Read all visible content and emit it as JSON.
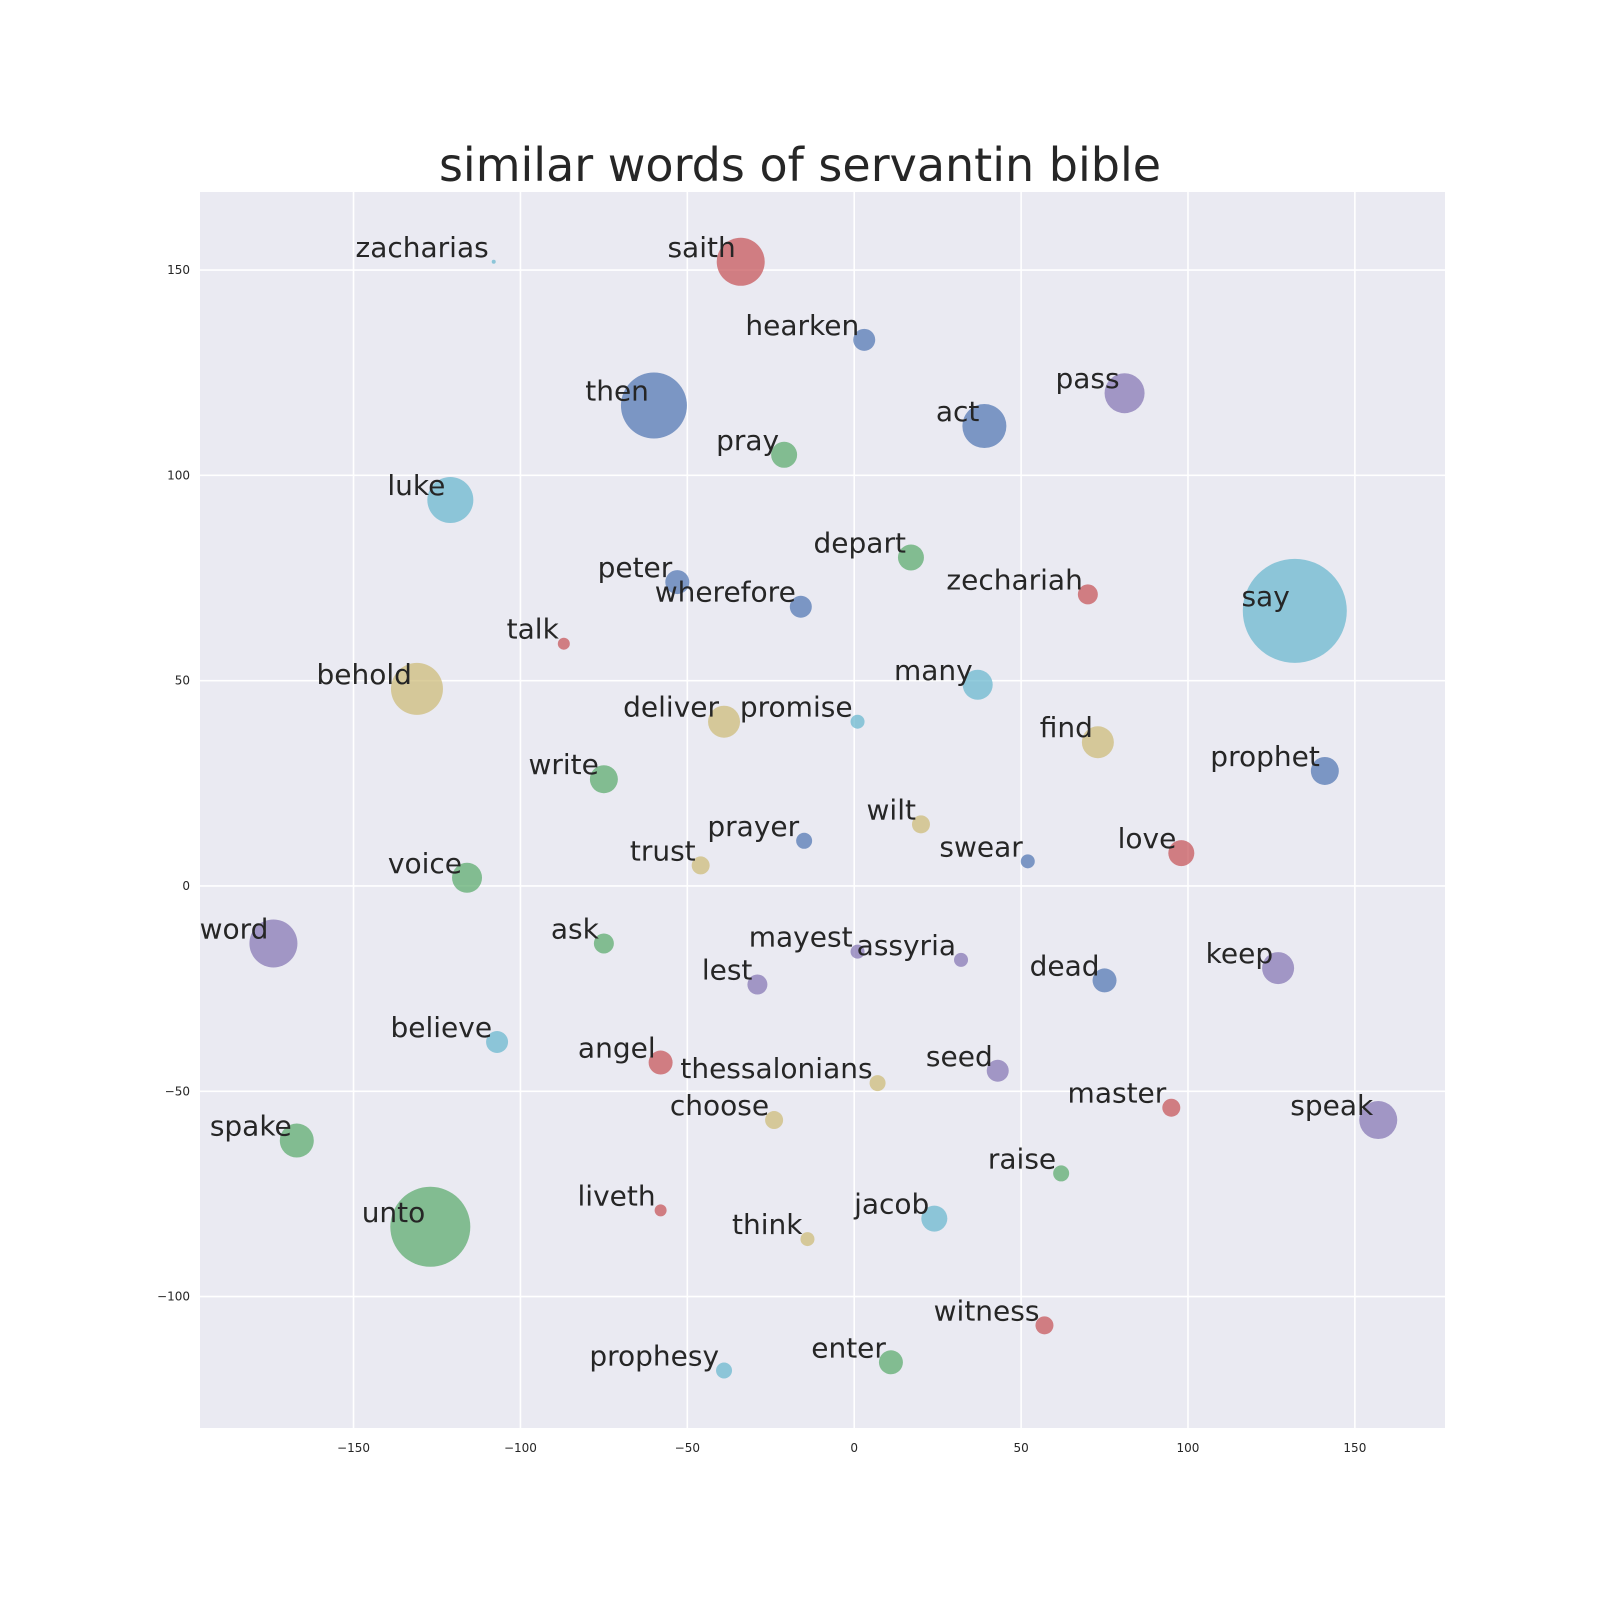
{
  "chart_data": {
    "type": "scatter",
    "title": "similar words of servantin bible",
    "xlabel": "",
    "ylabel": "",
    "xlim": [
      -196,
      177
    ],
    "ylim": [
      -132,
      169
    ],
    "grid": true,
    "x_ticks": [
      -150,
      -100,
      -50,
      0,
      50,
      100,
      150
    ],
    "x_tick_labels": [
      "−150",
      "−100",
      "−50",
      "0",
      "50",
      "100",
      "150"
    ],
    "y_ticks": [
      150,
      100,
      50,
      0,
      -50,
      -100
    ],
    "y_tick_labels": [
      "150",
      "100",
      "50",
      "0",
      "−50",
      "−100"
    ],
    "colors": {
      "blue": "#4c72b0",
      "green": "#55a868",
      "red": "#c44e52",
      "purple": "#8172b2",
      "yellow": "#ccb974",
      "cyan": "#64b5cd"
    },
    "points": [
      {
        "word": "zacharias",
        "x": -108,
        "y": 152,
        "size": 2,
        "color": "cyan"
      },
      {
        "word": "saith",
        "x": -34,
        "y": 152,
        "size": 24,
        "color": "red"
      },
      {
        "word": "hearken",
        "x": 3,
        "y": 133,
        "size": 11,
        "color": "blue"
      },
      {
        "word": "then",
        "x": -60,
        "y": 117,
        "size": 33,
        "color": "blue"
      },
      {
        "word": "pass",
        "x": 81,
        "y": 120,
        "size": 20,
        "color": "purple"
      },
      {
        "word": "act",
        "x": 39,
        "y": 112,
        "size": 22,
        "color": "blue"
      },
      {
        "word": "pray",
        "x": -21,
        "y": 105,
        "size": 13,
        "color": "green"
      },
      {
        "word": "luke",
        "x": -121,
        "y": 94,
        "size": 23,
        "color": "cyan"
      },
      {
        "word": "depart",
        "x": 17,
        "y": 80,
        "size": 13,
        "color": "green"
      },
      {
        "word": "peter",
        "x": -53,
        "y": 74,
        "size": 12,
        "color": "blue"
      },
      {
        "word": "wherefore",
        "x": -16,
        "y": 68,
        "size": 11,
        "color": "blue"
      },
      {
        "word": "zechariah",
        "x": 70,
        "y": 71,
        "size": 10,
        "color": "red"
      },
      {
        "word": "say",
        "x": 132,
        "y": 67,
        "size": 52,
        "color": "cyan"
      },
      {
        "word": "talk",
        "x": -87,
        "y": 59,
        "size": 6,
        "color": "red"
      },
      {
        "word": "behold",
        "x": -131,
        "y": 48,
        "size": 26,
        "color": "yellow"
      },
      {
        "word": "many",
        "x": 37,
        "y": 49,
        "size": 15,
        "color": "cyan"
      },
      {
        "word": "deliver",
        "x": -39,
        "y": 40,
        "size": 16,
        "color": "yellow"
      },
      {
        "word": "promise",
        "x": 1,
        "y": 40,
        "size": 7,
        "color": "cyan"
      },
      {
        "word": "find",
        "x": 73,
        "y": 35,
        "size": 16,
        "color": "yellow"
      },
      {
        "word": "prophet",
        "x": 141,
        "y": 28,
        "size": 14,
        "color": "blue"
      },
      {
        "word": "write",
        "x": -75,
        "y": 26,
        "size": 14,
        "color": "green"
      },
      {
        "word": "wilt",
        "x": 20,
        "y": 15,
        "size": 9,
        "color": "yellow"
      },
      {
        "word": "prayer",
        "x": -15,
        "y": 11,
        "size": 8,
        "color": "blue"
      },
      {
        "word": "swear",
        "x": 52,
        "y": 6,
        "size": 7,
        "color": "blue"
      },
      {
        "word": "love",
        "x": 98,
        "y": 8,
        "size": 13,
        "color": "red"
      },
      {
        "word": "trust",
        "x": -46,
        "y": 5,
        "size": 9,
        "color": "yellow"
      },
      {
        "word": "voice",
        "x": -116,
        "y": 2,
        "size": 15,
        "color": "green"
      },
      {
        "word": "word",
        "x": -174,
        "y": -14,
        "size": 24,
        "color": "purple"
      },
      {
        "word": "ask",
        "x": -75,
        "y": -14,
        "size": 10,
        "color": "green"
      },
      {
        "word": "mayest",
        "x": 1,
        "y": -16,
        "size": 7,
        "color": "purple"
      },
      {
        "word": "assyria",
        "x": 32,
        "y": -18,
        "size": 7,
        "color": "purple"
      },
      {
        "word": "lest",
        "x": -29,
        "y": -24,
        "size": 10,
        "color": "purple"
      },
      {
        "word": "dead",
        "x": 75,
        "y": -23,
        "size": 12,
        "color": "blue"
      },
      {
        "word": "keep",
        "x": 127,
        "y": -20,
        "size": 16,
        "color": "purple"
      },
      {
        "word": "believe",
        "x": -107,
        "y": -38,
        "size": 11,
        "color": "cyan"
      },
      {
        "word": "angel",
        "x": -58,
        "y": -43,
        "size": 12,
        "color": "red"
      },
      {
        "word": "thessalonians",
        "x": 7,
        "y": -48,
        "size": 8,
        "color": "yellow"
      },
      {
        "word": "seed",
        "x": 43,
        "y": -45,
        "size": 11,
        "color": "purple"
      },
      {
        "word": "master",
        "x": 95,
        "y": -54,
        "size": 9,
        "color": "red"
      },
      {
        "word": "choose",
        "x": -24,
        "y": -57,
        "size": 9,
        "color": "yellow"
      },
      {
        "word": "speak",
        "x": 157,
        "y": -57,
        "size": 19,
        "color": "purple"
      },
      {
        "word": "spake",
        "x": -167,
        "y": -62,
        "size": 17,
        "color": "green"
      },
      {
        "word": "raise",
        "x": 62,
        "y": -70,
        "size": 8,
        "color": "green"
      },
      {
        "word": "unto",
        "x": -127,
        "y": -83,
        "size": 40,
        "color": "green"
      },
      {
        "word": "liveth",
        "x": -58,
        "y": -79,
        "size": 6,
        "color": "red"
      },
      {
        "word": "jacob",
        "x": 24,
        "y": -81,
        "size": 13,
        "color": "cyan"
      },
      {
        "word": "think",
        "x": -14,
        "y": -86,
        "size": 7,
        "color": "yellow"
      },
      {
        "word": "witness",
        "x": 57,
        "y": -107,
        "size": 9,
        "color": "red"
      },
      {
        "word": "enter",
        "x": 11,
        "y": -116,
        "size": 12,
        "color": "green"
      },
      {
        "word": "prophesy",
        "x": -39,
        "y": -118,
        "size": 8,
        "color": "cyan"
      }
    ]
  }
}
